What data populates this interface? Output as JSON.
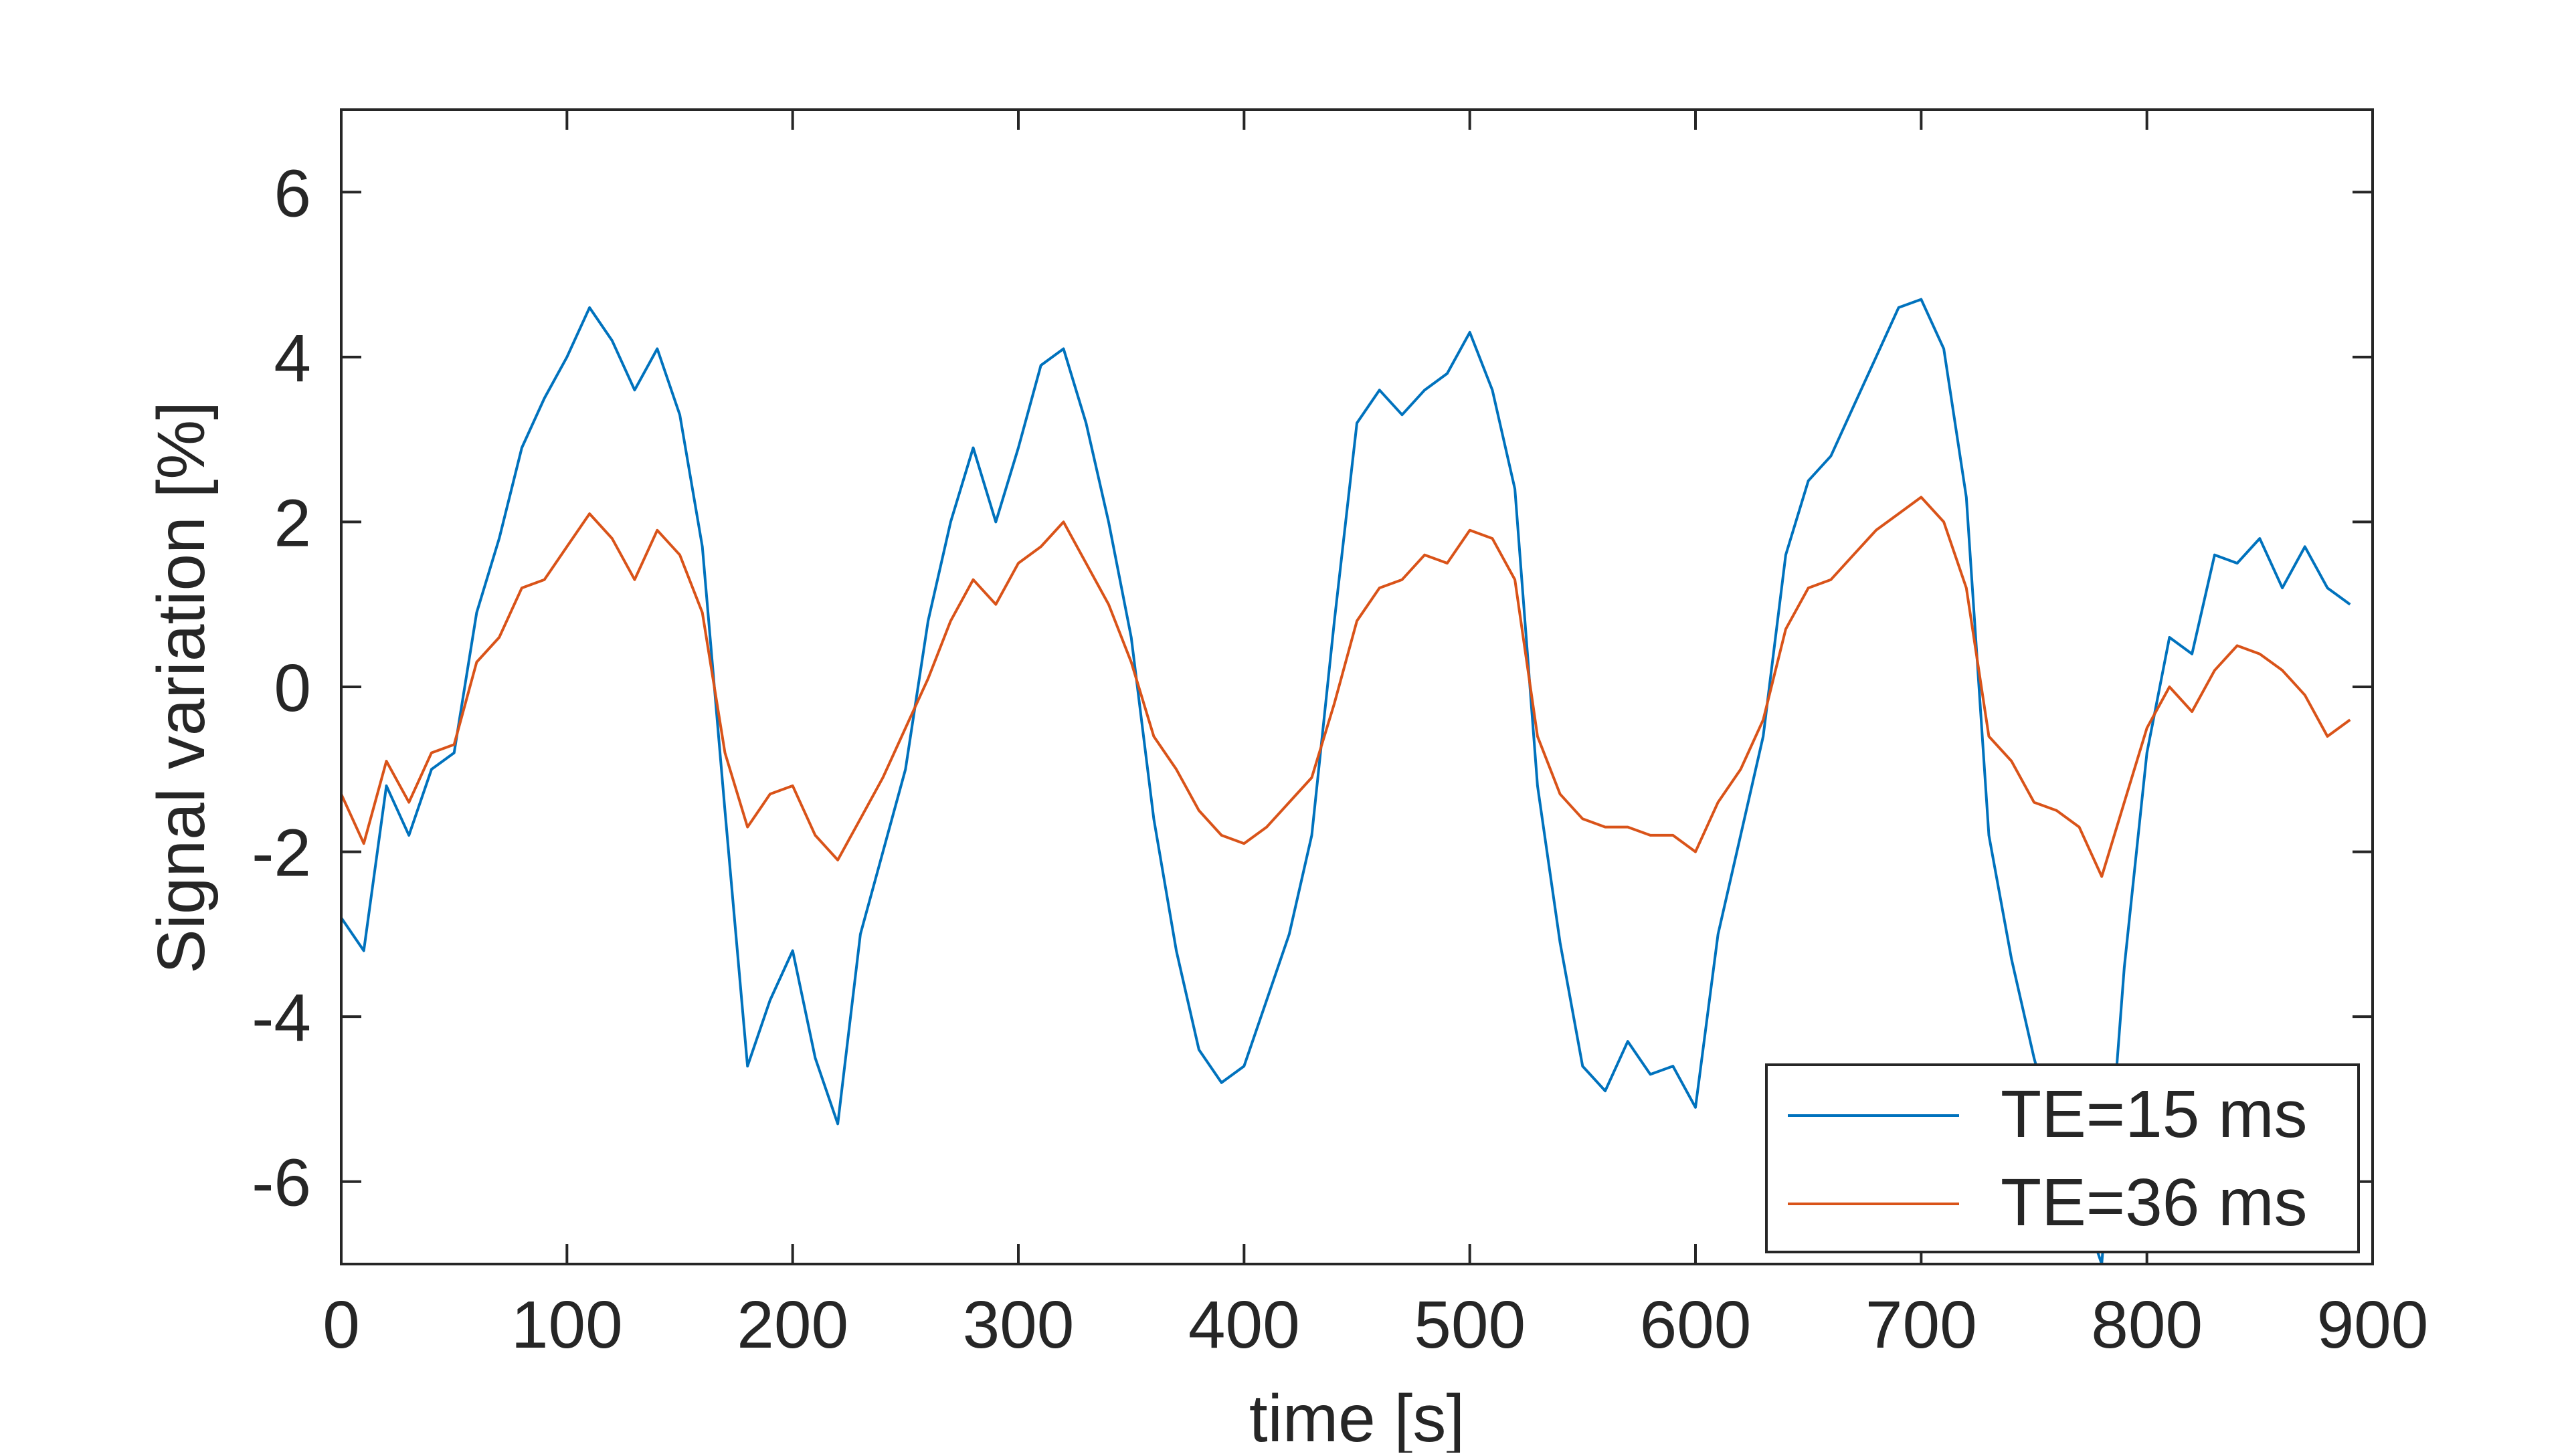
{
  "chart_data": {
    "type": "line",
    "xlabel": "time [s]",
    "ylabel": "Signal variation [%]",
    "xlim": [
      0,
      900
    ],
    "ylim": [
      -7,
      7
    ],
    "xticks": [
      "0",
      "100",
      "200",
      "300",
      "400",
      "500",
      "600",
      "700",
      "800",
      "900"
    ],
    "yticks": [
      "6",
      "4",
      "2",
      "0",
      "-2",
      "-4",
      "-6"
    ],
    "grid": false,
    "legend_position": "bottom-right",
    "series": [
      {
        "name": "TE=15 ms",
        "color": "#0072BD",
        "x": [
          0,
          10,
          20,
          30,
          40,
          50,
          60,
          70,
          80,
          90,
          100,
          110,
          120,
          130,
          140,
          150,
          160,
          170,
          180,
          190,
          200,
          210,
          220,
          230,
          240,
          250,
          260,
          270,
          280,
          290,
          300,
          310,
          320,
          330,
          340,
          350,
          360,
          370,
          380,
          390,
          400,
          410,
          420,
          430,
          440,
          450,
          460,
          470,
          480,
          490,
          500,
          510,
          520,
          530,
          540,
          550,
          560,
          570,
          580,
          590,
          600,
          610,
          620,
          630,
          640,
          650,
          660,
          670,
          680,
          690,
          700,
          710,
          720,
          730,
          740,
          750,
          760,
          770,
          780,
          790,
          800,
          810,
          820,
          830,
          840,
          850,
          860,
          870,
          880,
          890
        ],
        "y": [
          -2.8,
          -3.2,
          -1.2,
          -1.8,
          -1.0,
          -0.8,
          0.9,
          1.8,
          2.9,
          3.5,
          4.0,
          4.6,
          4.2,
          3.6,
          4.1,
          3.3,
          1.7,
          -1.5,
          -4.6,
          -3.8,
          -3.2,
          -4.5,
          -5.3,
          -3.0,
          -2.0,
          -1.0,
          0.8,
          2.0,
          2.9,
          2.0,
          2.9,
          3.9,
          4.1,
          3.2,
          2.0,
          0.6,
          -1.6,
          -3.2,
          -4.4,
          -4.8,
          -4.6,
          -3.8,
          -3.0,
          -1.8,
          0.8,
          3.2,
          3.6,
          3.3,
          3.6,
          3.8,
          4.3,
          3.6,
          2.4,
          -1.2,
          -3.1,
          -4.6,
          -4.9,
          -4.3,
          -4.7,
          -4.6,
          -5.1,
          -3.0,
          -1.8,
          -0.6,
          1.6,
          2.5,
          2.8,
          3.4,
          4.0,
          4.6,
          4.7,
          4.1,
          2.3,
          -1.8,
          -3.3,
          -4.5,
          -5.5,
          -6.2,
          -7.0,
          -3.4,
          -0.8,
          0.6,
          0.4,
          1.6,
          1.5,
          1.8,
          1.2,
          1.7,
          1.2,
          1.0
        ]
      },
      {
        "name": "TE=36 ms",
        "color": "#D95319",
        "x": [
          0,
          10,
          20,
          30,
          40,
          50,
          60,
          70,
          80,
          90,
          100,
          110,
          120,
          130,
          140,
          150,
          160,
          170,
          180,
          190,
          200,
          210,
          220,
          230,
          240,
          250,
          260,
          270,
          280,
          290,
          300,
          310,
          320,
          330,
          340,
          350,
          360,
          370,
          380,
          390,
          400,
          410,
          420,
          430,
          440,
          450,
          460,
          470,
          480,
          490,
          500,
          510,
          520,
          530,
          540,
          550,
          560,
          570,
          580,
          590,
          600,
          610,
          620,
          630,
          640,
          650,
          660,
          670,
          680,
          690,
          700,
          710,
          720,
          730,
          740,
          750,
          760,
          770,
          780,
          790,
          800,
          810,
          820,
          830,
          840,
          850,
          860,
          870,
          880,
          890
        ],
        "y": [
          -1.3,
          -1.9,
          -0.9,
          -1.4,
          -0.8,
          -0.7,
          0.3,
          0.6,
          1.2,
          1.3,
          1.7,
          2.1,
          1.8,
          1.3,
          1.9,
          1.6,
          0.9,
          -0.8,
          -1.7,
          -1.3,
          -1.2,
          -1.8,
          -2.1,
          -1.6,
          -1.1,
          -0.5,
          0.1,
          0.8,
          1.3,
          1.0,
          1.5,
          1.7,
          2.0,
          1.5,
          1.0,
          0.3,
          -0.6,
          -1.0,
          -1.5,
          -1.8,
          -1.9,
          -1.7,
          -1.4,
          -1.1,
          -0.2,
          0.8,
          1.2,
          1.3,
          1.6,
          1.5,
          1.9,
          1.8,
          1.3,
          -0.6,
          -1.3,
          -1.6,
          -1.7,
          -1.7,
          -1.8,
          -1.8,
          -2.0,
          -1.4,
          -1.0,
          -0.4,
          0.7,
          1.2,
          1.3,
          1.6,
          1.9,
          2.1,
          2.3,
          2.0,
          1.2,
          -0.6,
          -0.9,
          -1.4,
          -1.5,
          -1.7,
          -2.3,
          -1.4,
          -0.5,
          0.0,
          -0.3,
          0.2,
          0.5,
          0.4,
          0.2,
          -0.1,
          -0.6,
          -0.4
        ]
      }
    ]
  }
}
